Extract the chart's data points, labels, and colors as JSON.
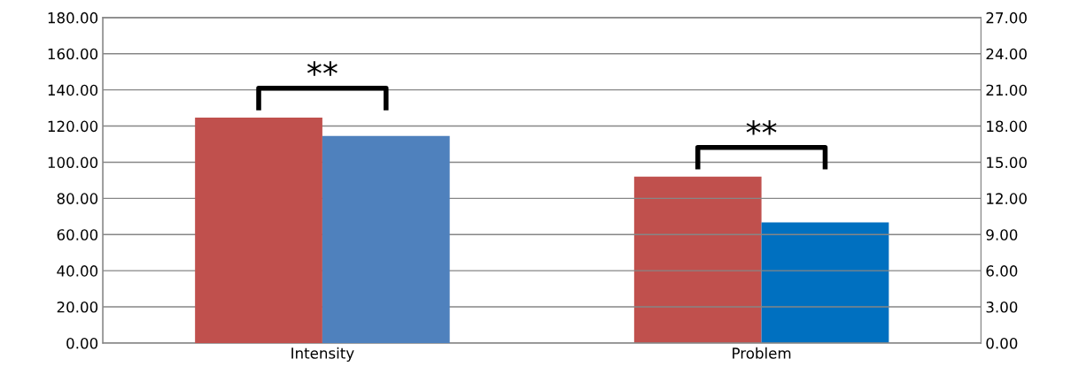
{
  "chart_data": {
    "type": "bar",
    "categories": [
      "Intensity",
      "Problem"
    ],
    "series": [
      {
        "color": "#c0504d",
        "values": [
          124.7,
          null
        ]
      },
      {
        "color": "#4f81bd",
        "values": [
          114.5,
          null
        ]
      },
      {
        "color": "#c0504d",
        "values": [
          null,
          13.8
        ],
        "axis": "y2"
      },
      {
        "color": "#0070c0",
        "values": [
          null,
          10.0
        ],
        "axis": "y2"
      }
    ],
    "ylim": [
      0,
      180
    ],
    "yticks": [
      {
        "value": 0,
        "label": "0.00"
      },
      {
        "value": 20,
        "label": "20.00"
      },
      {
        "value": 40,
        "label": "40.00"
      },
      {
        "value": 60,
        "label": "60.00"
      },
      {
        "value": 80,
        "label": "80.00"
      },
      {
        "value": 100,
        "label": "100.00"
      },
      {
        "value": 120,
        "label": "120.00"
      },
      {
        "value": 140,
        "label": "140.00"
      },
      {
        "value": 160,
        "label": "160.00"
      },
      {
        "value": 180,
        "label": "180.00"
      }
    ],
    "y2lim": [
      0,
      27
    ],
    "y2ticks": [
      {
        "value": 0,
        "label": "0.00"
      },
      {
        "value": 3,
        "label": "3.00"
      },
      {
        "value": 6,
        "label": "6.00"
      },
      {
        "value": 9,
        "label": "9.00"
      },
      {
        "value": 12,
        "label": "12.00"
      },
      {
        "value": 15,
        "label": "15.00"
      },
      {
        "value": 18,
        "label": "18.00"
      },
      {
        "value": 21,
        "label": "21.00"
      },
      {
        "value": 24,
        "label": "24.00"
      },
      {
        "value": 27,
        "label": "27.00"
      }
    ],
    "grid": "y",
    "annotations": [
      "**",
      "**"
    ]
  }
}
